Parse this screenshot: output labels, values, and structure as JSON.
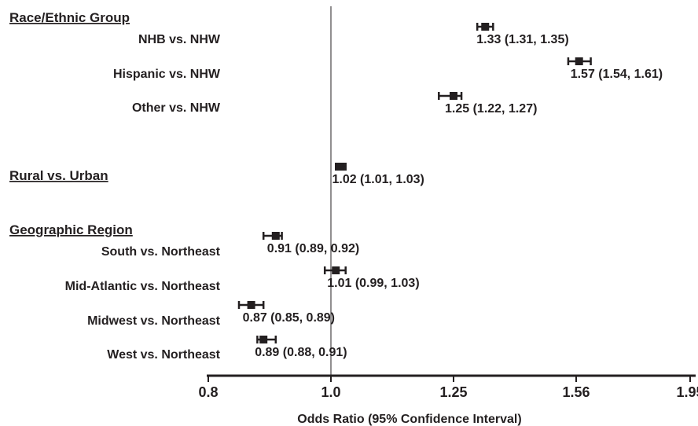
{
  "chart_data": {
    "type": "forest",
    "xlabel": "Odds Ratio (95% Confidence Interval)",
    "reference_line": 1.0,
    "x_ticks": [
      {
        "value": 0.8,
        "label": "0.8"
      },
      {
        "value": 1.0,
        "label": "1.0"
      },
      {
        "value": 1.25,
        "label": "1.25"
      },
      {
        "value": 1.56,
        "label": "1.56"
      },
      {
        "value": 1.95,
        "label": "1.95"
      }
    ],
    "xlim": [
      0.8,
      1.95
    ],
    "groups": [
      {
        "header": "Race/Ethnic Group",
        "rows": [
          {
            "label": "NHB vs. NHW",
            "or": 1.33,
            "lo": 1.31,
            "hi": 1.35,
            "text": "1.33 (1.31, 1.35)"
          },
          {
            "label": "Hispanic vs. NHW",
            "or": 1.57,
            "lo": 1.54,
            "hi": 1.61,
            "text": "1.57 (1.54, 1.61)"
          },
          {
            "label": "Other vs. NHW",
            "or": 1.25,
            "lo": 1.22,
            "hi": 1.27,
            "text": "1.25 (1.22, 1.27)"
          }
        ]
      },
      {
        "header": "Rural vs. Urban",
        "rows": [
          {
            "label": "",
            "or": 1.02,
            "lo": 1.01,
            "hi": 1.03,
            "text": "1.02 (1.01, 1.03)"
          }
        ]
      },
      {
        "header": "Geographic Region",
        "rows": [
          {
            "label": "South vs. Northeast",
            "or": 0.91,
            "lo": 0.89,
            "hi": 0.92,
            "text": "0.91 (0.89, 0.92)"
          },
          {
            "label": "Mid-Atlantic vs. Northeast",
            "or": 1.01,
            "lo": 0.99,
            "hi": 1.03,
            "text": "1.01 (0.99, 1.03)"
          },
          {
            "label": "Midwest vs. Northeast",
            "or": 0.87,
            "lo": 0.85,
            "hi": 0.89,
            "text": "0.87 (0.85, 0.89)"
          },
          {
            "label": "West vs. Northeast",
            "or": 0.89,
            "lo": 0.88,
            "hi": 0.91,
            "text": "0.89 (0.88, 0.91)"
          }
        ]
      }
    ],
    "colors": {
      "ink": "#231f20"
    }
  }
}
